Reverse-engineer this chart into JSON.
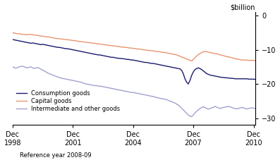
{
  "title": "",
  "ylabel": "$billion",
  "xlabel_note": "Reference year 2008-09",
  "ylim": [
    -32,
    1
  ],
  "yticks": [
    0,
    -10,
    -20,
    -30
  ],
  "xtick_labels": [
    "Dec\n1998",
    "Dec\n2001",
    "Dec\n2004",
    "Dec\n2007",
    "Dec\n2010"
  ],
  "xtick_positions": [
    0,
    36,
    72,
    108,
    144
  ],
  "n_points": 145,
  "colors": {
    "consumption": "#1a1a6e",
    "capital": "#e8956d",
    "intermediate": "#a0a0d0"
  },
  "legend": [
    "Consumption goods",
    "Capital goods",
    "Intermediate and other goods"
  ],
  "consumption_goods": [
    -7.0,
    -7.1,
    -7.2,
    -7.3,
    -7.4,
    -7.5,
    -7.6,
    -7.7,
    -7.8,
    -7.9,
    -8.0,
    -8.1,
    -8.0,
    -8.1,
    -8.2,
    -8.3,
    -8.4,
    -8.5,
    -8.4,
    -8.5,
    -8.6,
    -8.7,
    -8.8,
    -8.9,
    -9.0,
    -9.1,
    -9.2,
    -9.3,
    -9.3,
    -9.4,
    -9.5,
    -9.6,
    -9.7,
    -9.7,
    -9.8,
    -9.9,
    -10.0,
    -10.1,
    -10.2,
    -10.3,
    -10.4,
    -10.5,
    -10.6,
    -10.7,
    -10.8,
    -10.9,
    -11.0,
    -11.1,
    -11.2,
    -11.3,
    -11.4,
    -11.5,
    -11.5,
    -11.6,
    -11.7,
    -11.8,
    -11.9,
    -12.0,
    -12.1,
    -12.2,
    -12.2,
    -12.3,
    -12.4,
    -12.5,
    -12.5,
    -12.6,
    -12.6,
    -12.7,
    -12.8,
    -12.8,
    -12.9,
    -13.0,
    -13.0,
    -13.1,
    -13.2,
    -13.3,
    -13.4,
    -13.5,
    -13.6,
    -13.7,
    -13.7,
    -13.8,
    -13.9,
    -14.0,
    -14.0,
    -14.1,
    -14.2,
    -14.3,
    -14.4,
    -14.5,
    -14.6,
    -14.7,
    -14.8,
    -14.9,
    -15.0,
    -15.1,
    -15.2,
    -15.3,
    -15.4,
    -15.5,
    -15.6,
    -16.0,
    -17.0,
    -18.5,
    -19.5,
    -20.0,
    -19.0,
    -17.5,
    -16.5,
    -15.8,
    -15.5,
    -15.3,
    -15.5,
    -15.8,
    -16.2,
    -16.6,
    -17.0,
    -17.2,
    -17.4,
    -17.5,
    -17.6,
    -17.7,
    -17.8,
    -17.9,
    -18.0,
    -18.1,
    -18.1,
    -18.2,
    -18.2,
    -18.3,
    -18.3,
    -18.4,
    -18.4,
    -18.5,
    -18.5,
    -18.5,
    -18.5,
    -18.5,
    -18.5,
    -18.5,
    -18.5,
    -18.6,
    -18.6,
    -18.6,
    -18.6,
    -18.7
  ],
  "capital_goods": [
    -5.0,
    -5.1,
    -5.2,
    -5.3,
    -5.3,
    -5.4,
    -5.5,
    -5.5,
    -5.6,
    -5.6,
    -5.5,
    -5.5,
    -5.6,
    -5.7,
    -5.7,
    -5.8,
    -5.9,
    -6.0,
    -6.0,
    -6.1,
    -6.2,
    -6.2,
    -6.3,
    -6.4,
    -6.5,
    -6.6,
    -6.7,
    -6.7,
    -6.8,
    -6.8,
    -6.9,
    -7.0,
    -7.0,
    -7.1,
    -7.1,
    -7.2,
    -7.3,
    -7.3,
    -7.4,
    -7.5,
    -7.6,
    -7.6,
    -7.7,
    -7.7,
    -7.8,
    -7.9,
    -7.9,
    -8.0,
    -8.1,
    -8.1,
    -8.2,
    -8.3,
    -8.3,
    -8.4,
    -8.5,
    -8.5,
    -8.6,
    -8.7,
    -8.7,
    -8.8,
    -8.8,
    -8.9,
    -9.0,
    -9.0,
    -9.1,
    -9.2,
    -9.2,
    -9.3,
    -9.3,
    -9.4,
    -9.5,
    -9.5,
    -9.6,
    -9.6,
    -9.7,
    -9.8,
    -9.8,
    -9.9,
    -10.0,
    -10.0,
    -10.1,
    -10.2,
    -10.2,
    -10.3,
    -10.3,
    -10.4,
    -10.5,
    -10.5,
    -10.6,
    -10.7,
    -10.8,
    -10.8,
    -10.9,
    -11.0,
    -11.1,
    -11.2,
    -11.3,
    -11.4,
    -11.5,
    -11.7,
    -11.9,
    -12.1,
    -12.3,
    -12.5,
    -12.7,
    -12.9,
    -13.1,
    -13.3,
    -12.8,
    -12.3,
    -11.8,
    -11.4,
    -11.1,
    -10.8,
    -10.6,
    -10.5,
    -10.6,
    -10.7,
    -10.8,
    -10.9,
    -11.0,
    -11.1,
    -11.2,
    -11.3,
    -11.5,
    -11.6,
    -11.7,
    -11.9,
    -12.0,
    -12.1,
    -12.2,
    -12.3,
    -12.5,
    -12.6,
    -12.7,
    -12.8,
    -12.9,
    -13.0,
    -13.0,
    -13.0,
    -13.0,
    -13.1,
    -13.1,
    -13.1,
    -13.1,
    -13.2
  ],
  "intermediate_goods": [
    -15.0,
    -15.2,
    -15.4,
    -15.2,
    -15.0,
    -14.9,
    -14.8,
    -15.0,
    -15.2,
    -15.3,
    -15.1,
    -15.0,
    -15.3,
    -15.5,
    -15.3,
    -15.2,
    -15.4,
    -15.7,
    -16.0,
    -16.2,
    -16.5,
    -16.8,
    -17.0,
    -17.2,
    -17.4,
    -17.6,
    -17.8,
    -18.0,
    -18.1,
    -18.3,
    -18.4,
    -18.5,
    -18.6,
    -18.7,
    -18.8,
    -18.9,
    -19.0,
    -19.1,
    -19.2,
    -19.3,
    -19.4,
    -19.5,
    -19.7,
    -19.9,
    -20.0,
    -20.1,
    -20.2,
    -20.3,
    -20.4,
    -20.5,
    -20.5,
    -20.6,
    -20.7,
    -20.7,
    -20.8,
    -20.9,
    -21.0,
    -21.1,
    -21.2,
    -21.3,
    -21.4,
    -21.5,
    -21.6,
    -21.7,
    -21.8,
    -21.9,
    -22.0,
    -22.1,
    -22.2,
    -22.3,
    -22.4,
    -22.5,
    -22.5,
    -22.6,
    -22.7,
    -22.8,
    -22.9,
    -23.0,
    -23.1,
    -23.2,
    -23.3,
    -23.4,
    -23.5,
    -23.6,
    -23.7,
    -23.8,
    -24.0,
    -24.1,
    -24.2,
    -24.3,
    -24.4,
    -24.5,
    -24.6,
    -24.8,
    -25.0,
    -25.2,
    -25.4,
    -25.6,
    -25.9,
    -26.2,
    -26.6,
    -27.1,
    -27.6,
    -28.1,
    -28.6,
    -29.1,
    -29.4,
    -29.6,
    -29.1,
    -28.5,
    -28.0,
    -27.6,
    -27.2,
    -26.9,
    -26.7,
    -26.9,
    -27.2,
    -27.4,
    -27.2,
    -27.0,
    -26.8,
    -26.6,
    -26.8,
    -27.0,
    -27.2,
    -27.0,
    -26.9,
    -26.8,
    -26.7,
    -26.6,
    -26.7,
    -26.9,
    -27.1,
    -27.2,
    -27.3,
    -27.2,
    -27.0,
    -26.9,
    -27.0,
    -27.2,
    -27.3,
    -27.2,
    -27.1,
    -27.0,
    -27.1,
    -27.2
  ]
}
